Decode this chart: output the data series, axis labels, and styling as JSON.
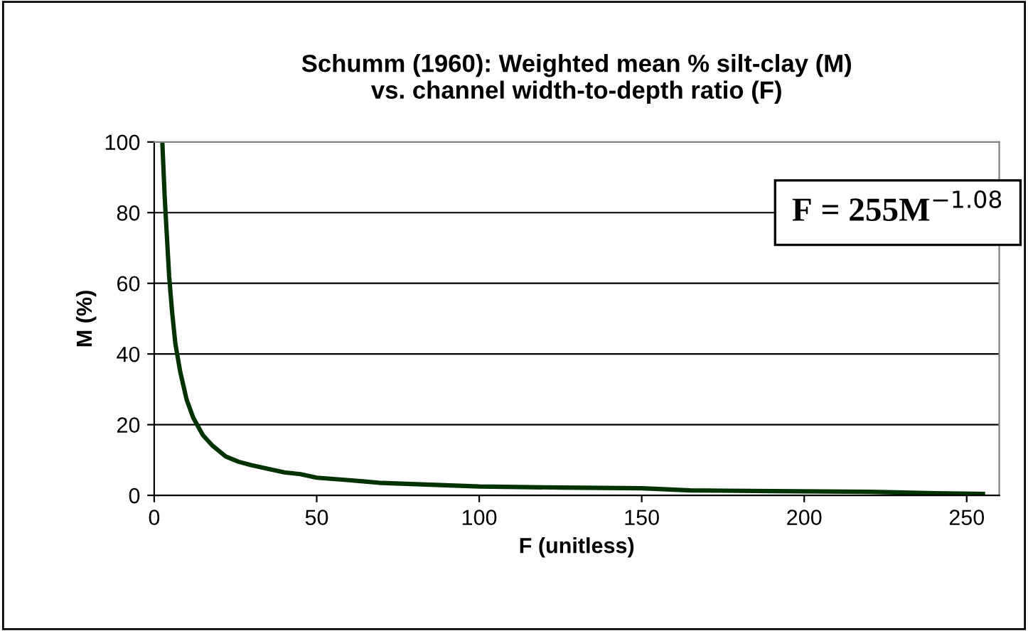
{
  "chart_data": {
    "type": "line",
    "title": "Schumm (1960): Weighted mean % silt-clay (M)\nvs. channel width-to-depth ratio (F)",
    "xlabel": "F (unitless)",
    "ylabel": "M (%)",
    "annotations": [
      "F = 255M$^{−1.08}$"
    ],
    "x": [
      2.5,
      3.2,
      3.8,
      4.6,
      5.5,
      6.5,
      8,
      10,
      12,
      15,
      18,
      22,
      26,
      30,
      35,
      40,
      45,
      50,
      60,
      70,
      85,
      100,
      125,
      150,
      165,
      190,
      220,
      240,
      255
    ],
    "series": [
      {
        "color": "#003300",
        "values": [
          100,
          85,
          75,
          62,
          52,
          43,
          35,
          27,
          22,
          17,
          14,
          11,
          9.5,
          8.5,
          7.5,
          6.5,
          6,
          5,
          4.3,
          3.5,
          3,
          2.5,
          2.2,
          2,
          1.4,
          1.2,
          1,
          0.6,
          0.4
        ]
      }
    ],
    "xlim": [
      0,
      260
    ],
    "xticks": [
      0,
      50,
      100,
      150,
      200,
      250
    ],
    "ylim": [
      0,
      100
    ],
    "yticks": [
      0,
      20,
      40,
      60,
      80,
      100
    ],
    "grid": "y",
    "legend": false,
    "marker": "none",
    "line_style": "solid"
  }
}
